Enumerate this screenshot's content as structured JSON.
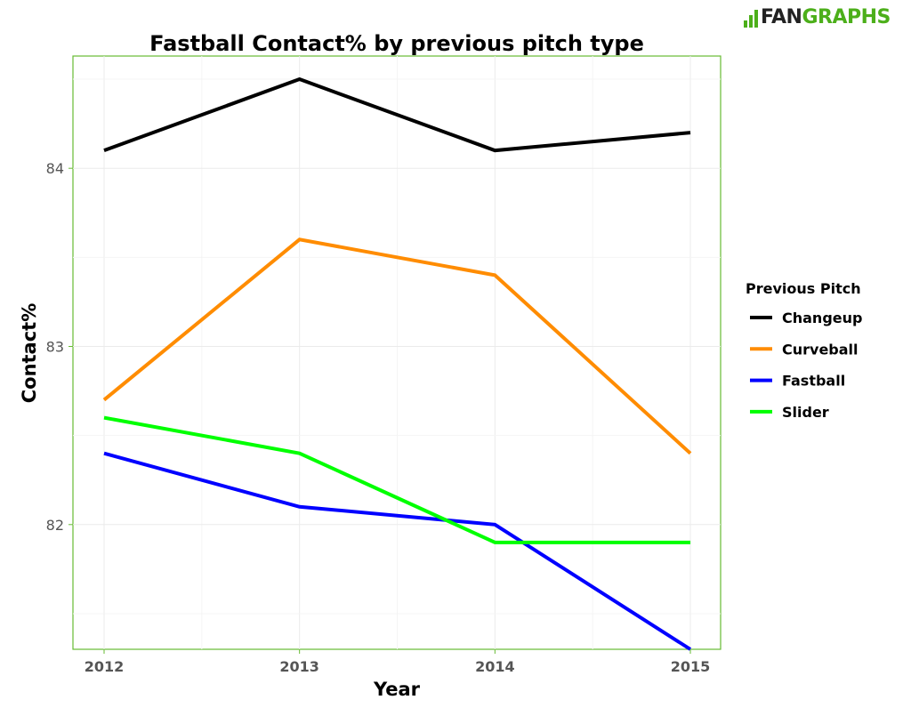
{
  "logo": {
    "part1": "FAN",
    "part2": "GRAPHS",
    "brand_color": "#4caf1a"
  },
  "chart_data": {
    "type": "line",
    "title": "Fastball Contact% by previous pitch type",
    "xlabel": "Year",
    "ylabel": "Contact%",
    "x": [
      "2012",
      "2013",
      "2014",
      "2015"
    ],
    "ylim": [
      81.3,
      84.63
    ],
    "yticks": [
      82,
      83,
      84
    ],
    "grid": true,
    "legend": {
      "title": "Previous Pitch",
      "position": "right"
    },
    "series": [
      {
        "name": "Changeup",
        "color": "#000000",
        "values": [
          84.1,
          84.5,
          84.1,
          84.2
        ]
      },
      {
        "name": "Curveball",
        "color": "#ff8c00",
        "values": [
          82.7,
          83.6,
          83.4,
          82.4
        ]
      },
      {
        "name": "Fastball",
        "color": "#0000ff",
        "values": [
          82.4,
          82.1,
          82.0,
          81.3
        ]
      },
      {
        "name": "Slider",
        "color": "#00ff00",
        "values": [
          82.6,
          82.4,
          81.9,
          81.9
        ]
      }
    ]
  }
}
